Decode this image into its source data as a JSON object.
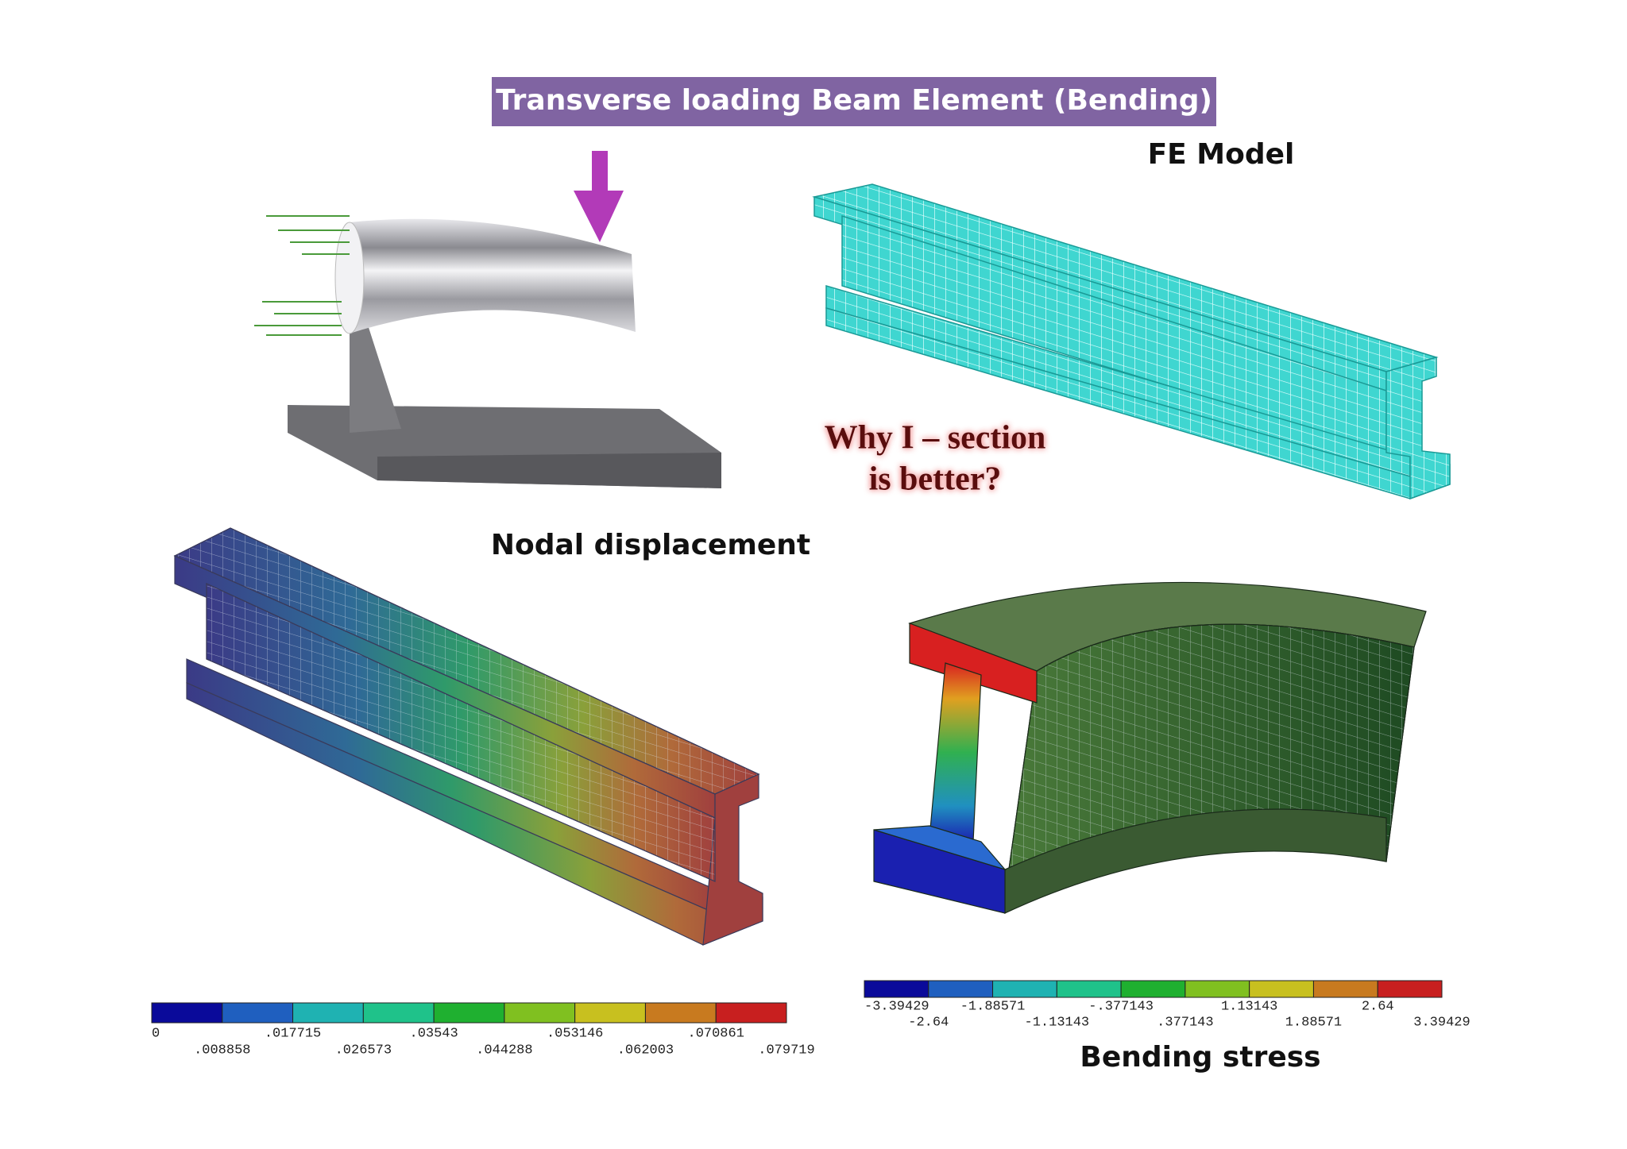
{
  "title": "Transverse loading Beam Element (Bending)",
  "fe_model": {
    "label": "FE Model"
  },
  "question": {
    "lines": [
      "Why I – section",
      "is better?"
    ]
  },
  "nodal_displacement": {
    "label": "Nodal displacement",
    "legend": [
      "0",
      ".008858",
      ".017715",
      ".026573",
      ".03543",
      ".044288",
      ".053146",
      ".062003",
      ".070861",
      ".079719"
    ]
  },
  "bending_stress": {
    "label": "Bending stress",
    "legend": [
      "-3.39429",
      "-2.64",
      "-1.88571",
      "-1.13143",
      "-.377143",
      ".377143",
      "1.13143",
      "1.88571",
      "2.64",
      "3.39429"
    ]
  }
}
